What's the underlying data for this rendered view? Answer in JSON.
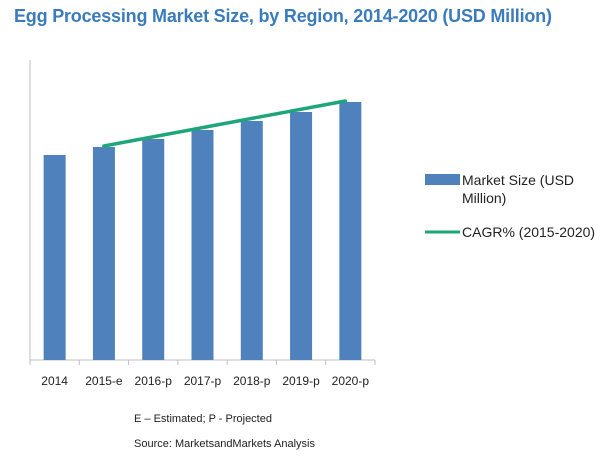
{
  "chart_data": {
    "type": "bar",
    "title": "Egg Processing Market Size, by Region, 2014-2020 (USD Million)",
    "categories": [
      "2014",
      "2015-e",
      "2016-p",
      "2017-p",
      "2018-p",
      "2019-p",
      "2020-p"
    ],
    "series": [
      {
        "name": "Market Size (USD Million)",
        "type": "bar",
        "values": [
          205,
          213,
          221,
          230,
          239,
          248,
          258
        ]
      }
    ],
    "cagr_line": {
      "name": "CAGR% (2015-2020)",
      "categories": [
        "2015-e",
        "2020-p"
      ]
    },
    "ylim": [
      0,
      300
    ],
    "y_axis_labels_shown": false,
    "grid": false,
    "legend_position": "right",
    "colors": {
      "bar": "#4f81bd",
      "line": "#1ea67a",
      "title": "#3a7bbd",
      "axis": "#bfbfbf"
    },
    "notes": {
      "estimated": "E – Estimated; P - Projected",
      "source": "Source: MarketsandMarkets Analysis"
    }
  }
}
